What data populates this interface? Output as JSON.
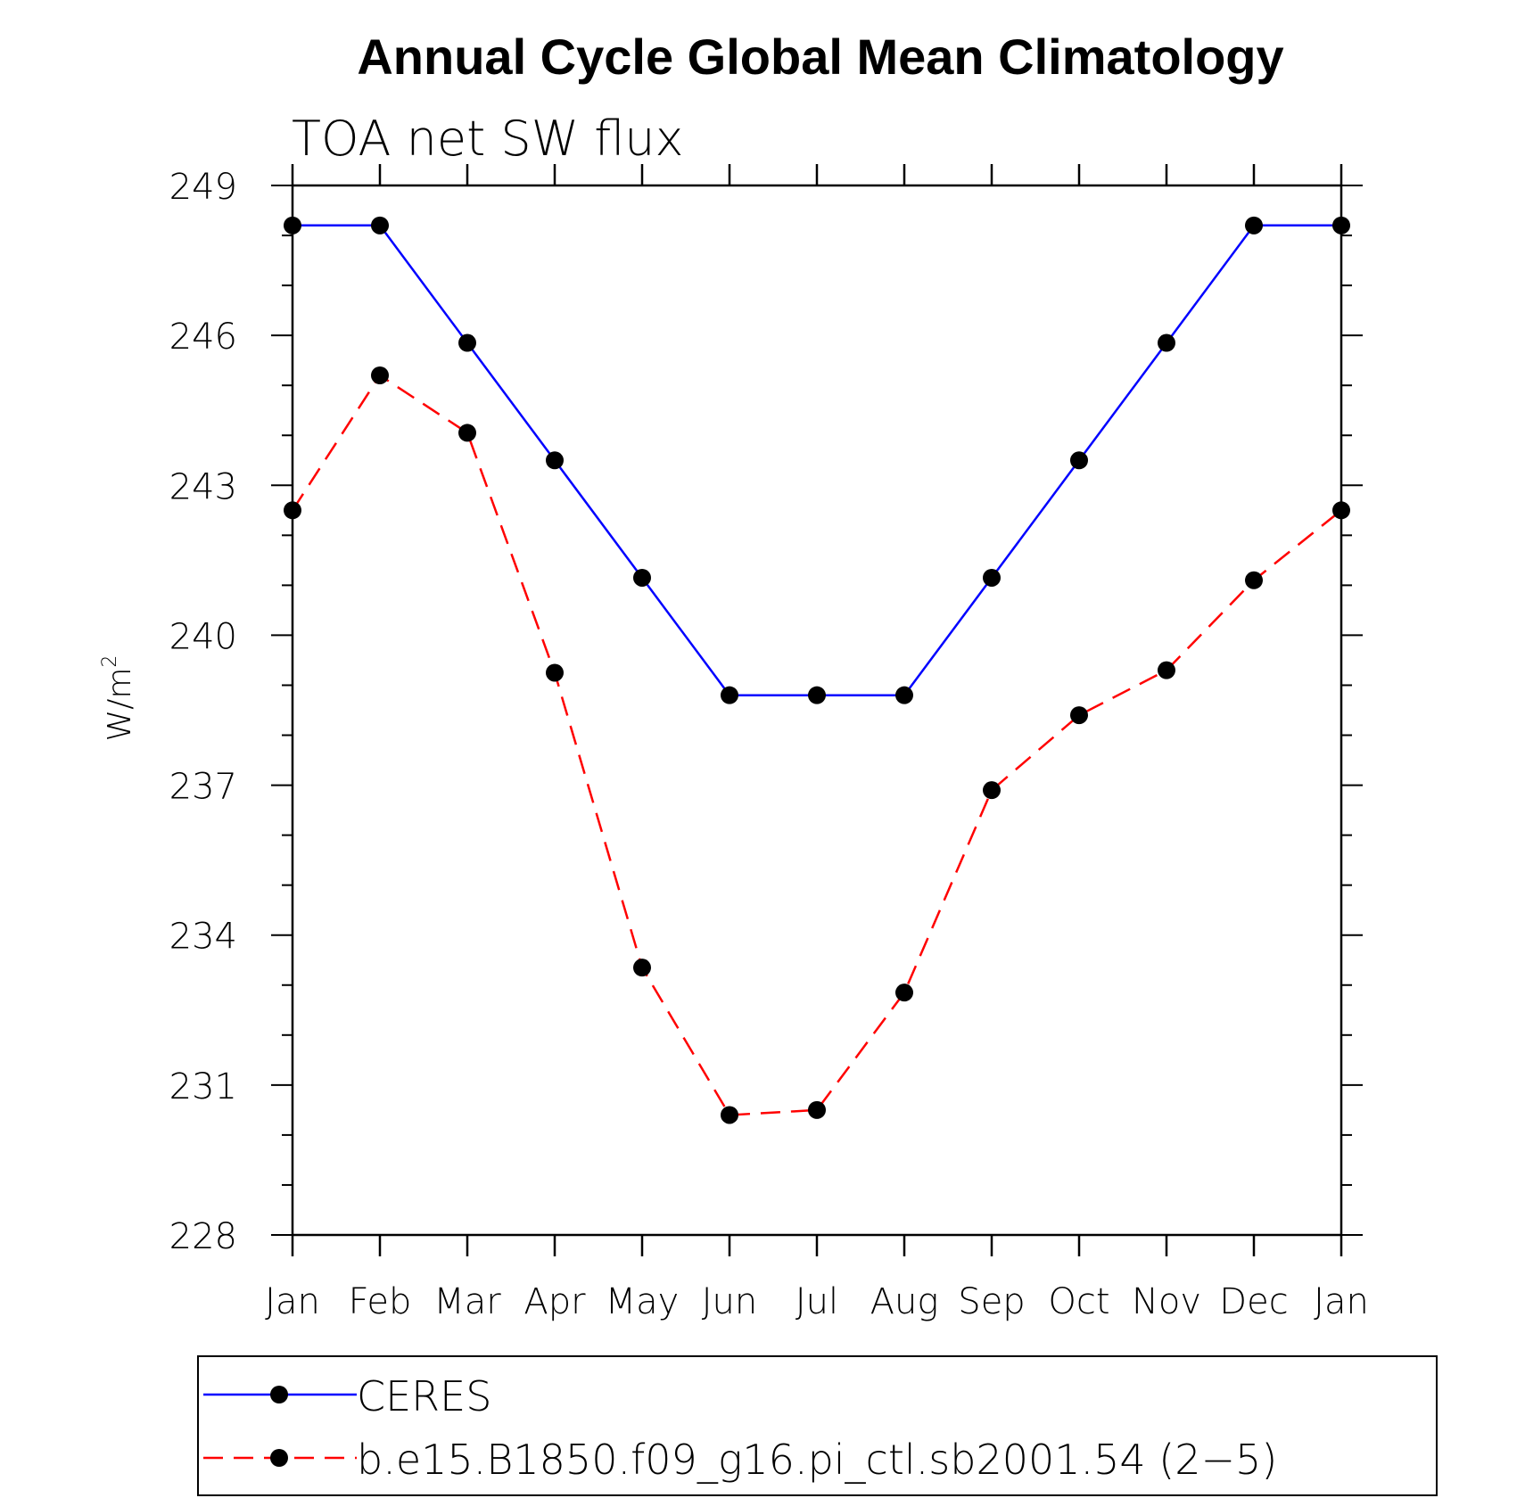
{
  "chart_data": {
    "type": "line",
    "title": "Annual Cycle Global Mean Climatology",
    "subtitle": "TOA net SW flux",
    "ylabel": "W/m",
    "ylabel_sup": "2",
    "xlabel": "",
    "categories": [
      "Jan",
      "Feb",
      "Mar",
      "Apr",
      "May",
      "Jun",
      "Jul",
      "Aug",
      "Sep",
      "Oct",
      "Nov",
      "Dec",
      "Jan"
    ],
    "yticks": [
      228,
      231,
      234,
      237,
      240,
      243,
      246,
      249
    ],
    "ylim": [
      228,
      249
    ],
    "grid": false,
    "legend_position": "bottom",
    "series": [
      {
        "name": "CERES",
        "color": "#0000ff",
        "style": "solid",
        "marker": "filled-circle",
        "values": [
          248.2,
          248.2,
          245.85,
          243.5,
          241.15,
          238.8,
          238.8,
          238.8,
          241.15,
          243.5,
          245.85,
          248.2,
          248.2
        ]
      },
      {
        "name": "b.e15.B1850.f09_g16.pi_ctl.sb2001.54 (2−5)",
        "color": "#ff0000",
        "style": "dashed",
        "marker": "filled-circle",
        "values": [
          242.5,
          245.2,
          244.05,
          239.25,
          233.35,
          230.4,
          230.5,
          232.85,
          236.9,
          238.4,
          239.3,
          241.1,
          242.5
        ]
      }
    ]
  }
}
